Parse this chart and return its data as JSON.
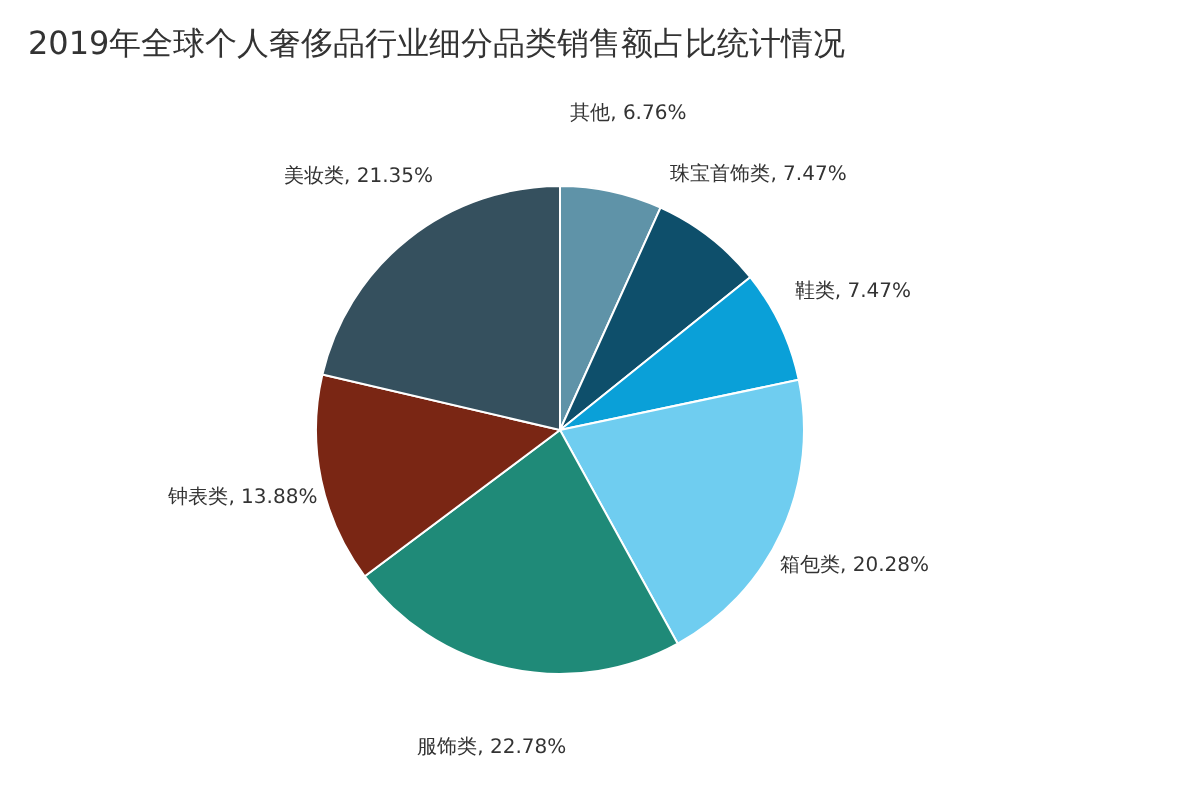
{
  "chart_data": {
    "type": "pie",
    "title": "2019年全球个人奢侈品行业细分品类销售额占比统计情况",
    "categories": [
      "其他",
      "珠宝首饰类",
      "鞋类",
      "箱包类",
      "服饰类",
      "钟表类",
      "美妆类"
    ],
    "values": [
      6.76,
      7.47,
      7.47,
      20.28,
      22.78,
      13.88,
      21.35
    ],
    "value_labels": [
      "6.76%",
      "7.47%",
      "7.47%",
      "20.28%",
      "22.78%",
      "13.88%",
      "21.35%"
    ],
    "colors": [
      "#5f93a8",
      "#0e4f6b",
      "#0aa0d8",
      "#6fcdf0",
      "#1f8a78",
      "#7a2614",
      "#35505e"
    ]
  }
}
